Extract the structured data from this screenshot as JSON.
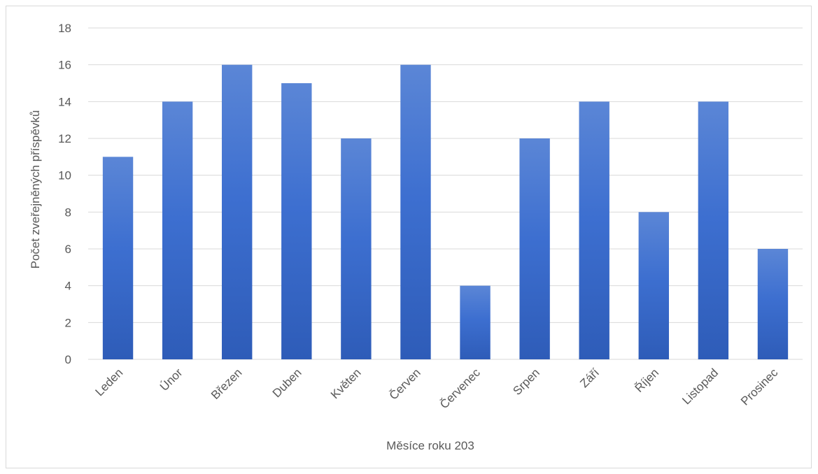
{
  "chart_data": {
    "type": "bar",
    "categories": [
      "Leden",
      "Únor",
      "Březen",
      "Duben",
      "Květen",
      "Červen",
      "Červenec",
      "Srpen",
      "Září",
      "Říjen",
      "Listopad",
      "Prosinec"
    ],
    "values": [
      11,
      14,
      16,
      15,
      12,
      16,
      4,
      12,
      14,
      8,
      14,
      6
    ],
    "xlabel": "Měsíce roku 203",
    "ylabel": "Počet zveřejněných příspěvků",
    "ylim": [
      0,
      18
    ],
    "yticks": [
      0,
      2,
      4,
      6,
      8,
      10,
      12,
      14,
      16,
      18
    ],
    "grid": true,
    "legend": "none",
    "colors": {
      "bar_top": "#5b86d6",
      "bar_mid": "#3d6fd0",
      "bar_bottom": "#2e5cb8",
      "grid": "#d9d9d9",
      "text": "#595959"
    }
  }
}
